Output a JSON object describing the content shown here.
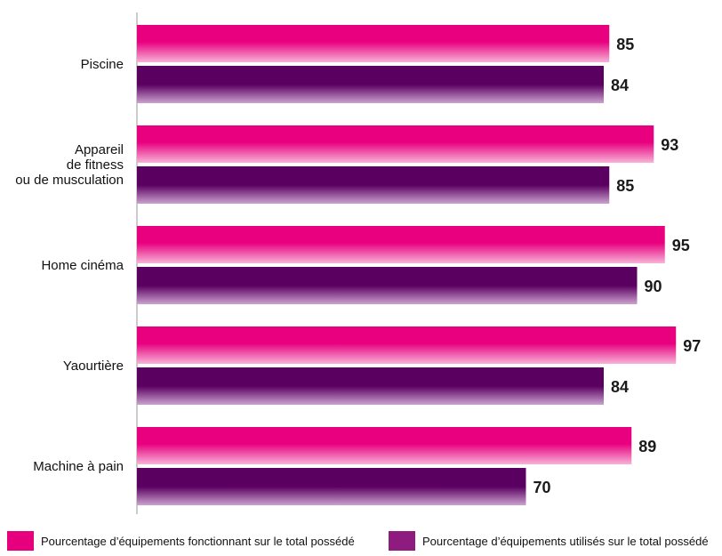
{
  "colors": {
    "fonctionnant_top": "#e8007e",
    "fonctionnant_bottom": "#f7b3d7",
    "utilises_top": "#5a0060",
    "utilises_bottom": "#cba3cf",
    "legend_fonctionnant": "#e6007e",
    "legend_utilises": "#8e1b7e",
    "axis": "#9a9a9a"
  },
  "chart_data": {
    "type": "bar",
    "orientation": "horizontal",
    "categories": [
      [
        "Piscine"
      ],
      [
        "Appareil",
        "de fitness",
        "ou de musculation"
      ],
      [
        "Home cinéma"
      ],
      [
        "Yaourtière"
      ],
      [
        "Machine à pain"
      ]
    ],
    "series": [
      {
        "name": "Pourcentage d’équipements fonctionnant sur le total possédé",
        "values": [
          85,
          93,
          95,
          97,
          89
        ]
      },
      {
        "name": "Pourcentage d’équipements utilisés sur le total possédé",
        "values": [
          84,
          85,
          90,
          84,
          70
        ]
      }
    ],
    "xlim": [
      0,
      100
    ],
    "grid": false,
    "legend_position": "bottom"
  }
}
